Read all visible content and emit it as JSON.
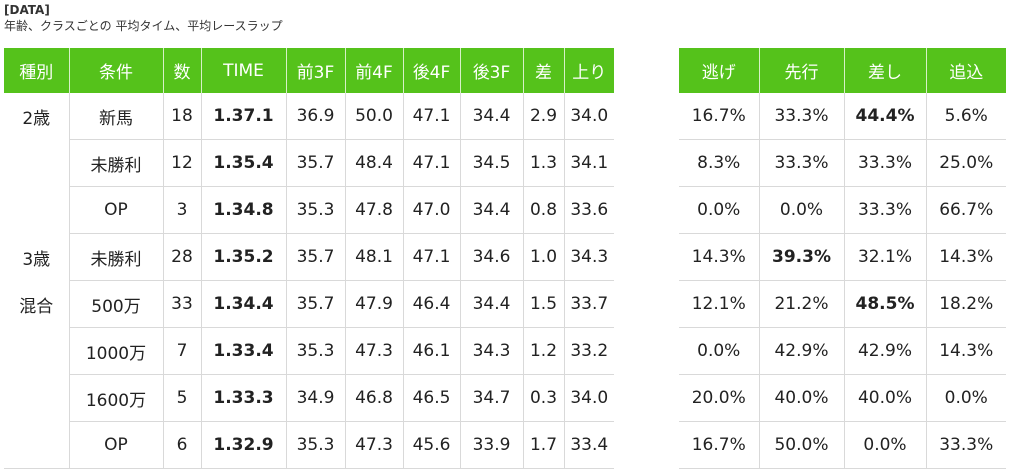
{
  "header": {
    "tag": "[DATA]",
    "subtitle": "年齢、クラスごとの 平均タイム、平均レースラップ"
  },
  "main_table": {
    "columns": [
      "種別",
      "条件",
      "数",
      "TIME",
      "前3F",
      "前4F",
      "後4F",
      "後3F",
      "差",
      "上り"
    ],
    "rows": [
      {
        "category": "2歳",
        "cond": "新馬",
        "n": "18",
        "time": "1.37.1",
        "f3": "36.9",
        "f4": "50.0",
        "b4": "47.1",
        "b3": "34.4",
        "diff": "2.9",
        "agari": "34.0"
      },
      {
        "category": "",
        "cond": "未勝利",
        "n": "12",
        "time": "1.35.4",
        "f3": "35.7",
        "f4": "48.4",
        "b4": "47.1",
        "b3": "34.5",
        "diff": "1.3",
        "agari": "34.1"
      },
      {
        "category": "",
        "cond": "OP",
        "n": "3",
        "time": "1.34.8",
        "f3": "35.3",
        "f4": "47.8",
        "b4": "47.0",
        "b3": "34.4",
        "diff": "0.8",
        "agari": "33.6"
      },
      {
        "category": "3歳",
        "cond": "未勝利",
        "n": "28",
        "time": "1.35.2",
        "f3": "35.7",
        "f4": "48.1",
        "b4": "47.1",
        "b3": "34.6",
        "diff": "1.0",
        "agari": "34.3"
      },
      {
        "category": "混合",
        "cond": "500万",
        "n": "33",
        "time": "1.34.4",
        "f3": "35.7",
        "f4": "47.9",
        "b4": "46.4",
        "b3": "34.4",
        "diff": "1.5",
        "agari": "33.7"
      },
      {
        "category": "",
        "cond": "1000万",
        "n": "7",
        "time": "1.33.4",
        "f3": "35.3",
        "f4": "47.3",
        "b4": "46.1",
        "b3": "34.3",
        "diff": "1.2",
        "agari": "33.2"
      },
      {
        "category": "",
        "cond": "1600万",
        "n": "5",
        "time": "1.33.3",
        "f3": "34.9",
        "f4": "46.8",
        "b4": "46.5",
        "b3": "34.7",
        "diff": "0.3",
        "agari": "34.0"
      },
      {
        "category": "",
        "cond": "OP",
        "n": "6",
        "time": "1.32.9",
        "f3": "35.3",
        "f4": "47.3",
        "b4": "45.6",
        "b3": "33.9",
        "diff": "1.7",
        "agari": "33.4"
      }
    ]
  },
  "style_table": {
    "columns": [
      "逃げ",
      "先行",
      "差し",
      "追込"
    ],
    "rows": [
      {
        "nige": "16.7%",
        "senko": "33.3%",
        "sashi": "44.4%",
        "oikomi": "5.6%",
        "bold": "sashi"
      },
      {
        "nige": "8.3%",
        "senko": "33.3%",
        "sashi": "33.3%",
        "oikomi": "25.0%",
        "bold": ""
      },
      {
        "nige": "0.0%",
        "senko": "0.0%",
        "sashi": "33.3%",
        "oikomi": "66.7%",
        "bold": ""
      },
      {
        "nige": "14.3%",
        "senko": "39.3%",
        "sashi": "32.1%",
        "oikomi": "14.3%",
        "bold": "senko"
      },
      {
        "nige": "12.1%",
        "senko": "21.2%",
        "sashi": "48.5%",
        "oikomi": "18.2%",
        "bold": "sashi"
      },
      {
        "nige": "0.0%",
        "senko": "42.9%",
        "sashi": "42.9%",
        "oikomi": "14.3%",
        "bold": ""
      },
      {
        "nige": "20.0%",
        "senko": "40.0%",
        "sashi": "40.0%",
        "oikomi": "0.0%",
        "bold": ""
      },
      {
        "nige": "16.7%",
        "senko": "50.0%",
        "sashi": "0.0%",
        "oikomi": "33.3%",
        "bold": ""
      }
    ]
  },
  "colors": {
    "header_green": "#55c21b",
    "grid": "#d9d9d9"
  }
}
